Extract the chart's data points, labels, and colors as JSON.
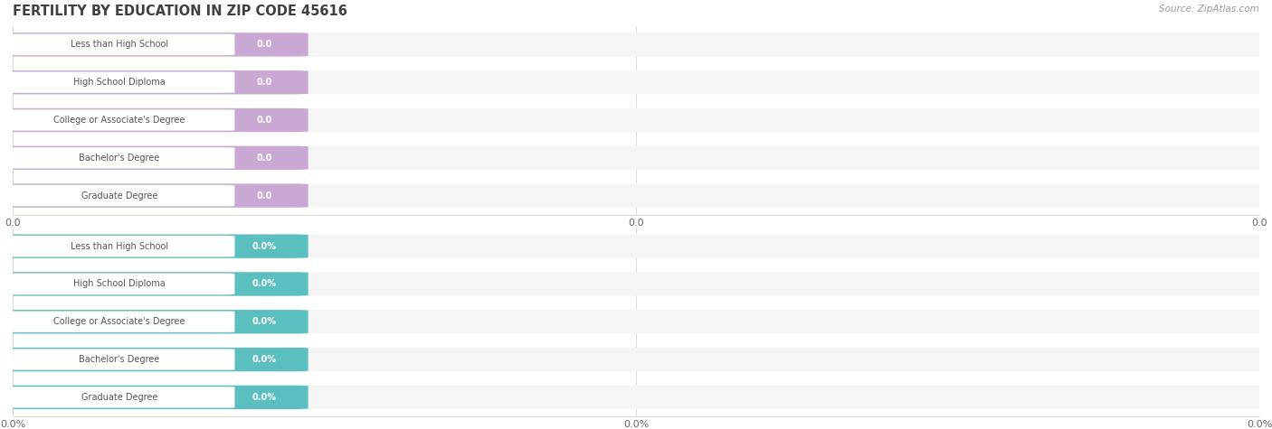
{
  "title": "FERTILITY BY EDUCATION IN ZIP CODE 45616",
  "source": "Source: ZipAtlas.com",
  "categories": [
    "Less than High School",
    "High School Diploma",
    "College or Associate's Degree",
    "Bachelor's Degree",
    "Graduate Degree"
  ],
  "values_top": [
    0.0,
    0.0,
    0.0,
    0.0,
    0.0
  ],
  "values_bottom": [
    0.0,
    0.0,
    0.0,
    0.0,
    0.0
  ],
  "bar_color_top": "#c9a8d4",
  "bar_color_bottom": "#5bbfbf",
  "track_color": "#e8e8e8",
  "value_label_top": [
    "0.0",
    "0.0",
    "0.0",
    "0.0",
    "0.0"
  ],
  "value_label_bottom": [
    "0.0%",
    "0.0%",
    "0.0%",
    "0.0%",
    "0.0%"
  ],
  "tick_labels_top": [
    "0.0",
    "0.0",
    "0.0"
  ],
  "tick_labels_bottom": [
    "0.0%",
    "0.0%",
    "0.0%"
  ],
  "bg_color": "#ffffff",
  "row_bg_color": "#f5f5f5",
  "title_color": "#404040",
  "source_color": "#999999",
  "label_text_color": "#555555",
  "value_text_color": "#ffffff",
  "label_box_color": "#ffffff",
  "label_box_edge": "#dddddd"
}
